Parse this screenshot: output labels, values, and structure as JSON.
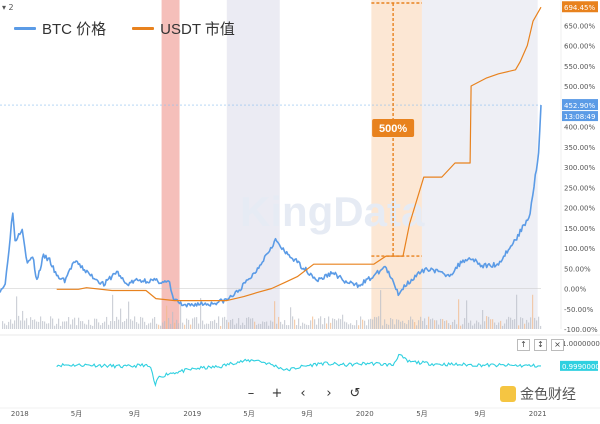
{
  "pane_toggle": "▾ 2",
  "legend": [
    {
      "label": "BTC 价格",
      "color": "#5b9be6"
    },
    {
      "label": "USDT 市值",
      "color": "#e8821e"
    }
  ],
  "watermark": "KingData",
  "annotation": {
    "text": "500%",
    "color": "#e8821e"
  },
  "axis_tag_colors": {
    "btc": "#5b9be6",
    "usdt": "#e8821e",
    "osc": "#2fd0e0"
  },
  "toolbar": {
    "minus": "–",
    "plus": "+",
    "left": "‹",
    "right": "›",
    "reset": "↺"
  },
  "mini_controls": {
    "up": "↑",
    "expand": "↕",
    "close": "×"
  },
  "brand": "金色财经",
  "chart_data": [
    {
      "type": "line",
      "x_range": [
        "2017-11-20",
        "2021-01-08"
      ],
      "x_tick_labels": [
        {
          "label": "2018",
          "date": "2018-01-01"
        },
        {
          "label": "5月",
          "date": "2018-05-01"
        },
        {
          "label": "9月",
          "date": "2018-09-01"
        },
        {
          "label": "2019",
          "date": "2019-01-01"
        },
        {
          "label": "5月",
          "date": "2019-05-01"
        },
        {
          "label": "9月",
          "date": "2019-09-01"
        },
        {
          "label": "2020",
          "date": "2020-01-01"
        },
        {
          "label": "5月",
          "date": "2020-05-01"
        },
        {
          "label": "9月",
          "date": "2020-09-01"
        },
        {
          "label": "2021",
          "date": "2021-01-01"
        }
      ],
      "y_tick_labels": [
        "650.00%",
        "600.00%",
        "550.00%",
        "500.00%",
        "450.00%",
        "400.00%",
        "350.00%",
        "300.00%",
        "250.00%",
        "200.00%",
        "150.00%",
        "100.00%",
        "50.00%",
        "0.00%",
        "-50.00%",
        "-100.00%"
      ],
      "y_unit": "%",
      "ylim": [
        -100,
        700
      ],
      "last_value_tags": {
        "usdt": "694.45%",
        "btc": "452.90%",
        "countdown": "13:08:49"
      },
      "series": [
        {
          "name": "BTC 价格",
          "color": "#5b9be6",
          "points": [
            [
              "2017-11-20",
              -4
            ],
            [
              "2017-12-01",
              10
            ],
            [
              "2017-12-17",
              190
            ],
            [
              "2017-12-22",
              118
            ],
            [
              "2018-01-06",
              150
            ],
            [
              "2018-01-17",
              60
            ],
            [
              "2018-01-28",
              80
            ],
            [
              "2018-02-06",
              20
            ],
            [
              "2018-02-20",
              80
            ],
            [
              "2018-03-05",
              70
            ],
            [
              "2018-03-20",
              30
            ],
            [
              "2018-04-06",
              20
            ],
            [
              "2018-04-25",
              65
            ],
            [
              "2018-05-05",
              60
            ],
            [
              "2018-05-28",
              35
            ],
            [
              "2018-06-28",
              10
            ],
            [
              "2018-07-25",
              42
            ],
            [
              "2018-08-14",
              10
            ],
            [
              "2018-09-05",
              20
            ],
            [
              "2018-10-15",
              19
            ],
            [
              "2018-11-14",
              14
            ],
            [
              "2018-11-20",
              -22
            ],
            [
              "2018-12-15",
              -45
            ],
            [
              "2019-01-10",
              -38
            ],
            [
              "2019-02-08",
              -38
            ],
            [
              "2019-03-15",
              -28
            ],
            [
              "2019-04-05",
              -10
            ],
            [
              "2019-05-14",
              40
            ],
            [
              "2019-06-26",
              120
            ],
            [
              "2019-07-15",
              90
            ],
            [
              "2019-08-06",
              70
            ],
            [
              "2019-09-24",
              20
            ],
            [
              "2019-10-26",
              40
            ],
            [
              "2019-11-22",
              15
            ],
            [
              "2019-12-17",
              8
            ],
            [
              "2020-01-20",
              30
            ],
            [
              "2020-02-13",
              55
            ],
            [
              "2020-03-12",
              -12
            ],
            [
              "2020-04-01",
              15
            ],
            [
              "2020-04-29",
              40
            ],
            [
              "2020-05-18",
              50
            ],
            [
              "2020-06-15",
              35
            ],
            [
              "2020-07-01",
              35
            ],
            [
              "2020-07-27",
              70
            ],
            [
              "2020-08-17",
              75
            ],
            [
              "2020-09-05",
              55
            ],
            [
              "2020-10-10",
              60
            ],
            [
              "2020-10-21",
              80
            ],
            [
              "2020-11-15",
              120
            ],
            [
              "2020-11-30",
              150
            ],
            [
              "2020-12-16",
              185
            ],
            [
              "2020-12-27",
              280
            ],
            [
              "2021-01-03",
              330
            ],
            [
              "2021-01-08",
              452.9
            ]
          ]
        },
        {
          "name": "USDT 市值",
          "color": "#e8821e",
          "points": [
            [
              "2018-03-20",
              -2
            ],
            [
              "2018-05-05",
              -2
            ],
            [
              "2018-05-22",
              2
            ],
            [
              "2018-07-15",
              -5
            ],
            [
              "2018-09-25",
              -5
            ],
            [
              "2018-10-16",
              -25
            ],
            [
              "2018-11-25",
              -30
            ],
            [
              "2019-02-01",
              -30
            ],
            [
              "2019-03-15",
              -30
            ],
            [
              "2019-04-20",
              -20
            ],
            [
              "2019-05-18",
              -10
            ],
            [
              "2019-06-18",
              0
            ],
            [
              "2019-07-16",
              15
            ],
            [
              "2019-08-12",
              30
            ],
            [
              "2019-09-15",
              60
            ],
            [
              "2019-10-15",
              60
            ],
            [
              "2019-11-15",
              60
            ],
            [
              "2019-12-15",
              60
            ],
            [
              "2020-01-20",
              60
            ],
            [
              "2020-02-15",
              80
            ],
            [
              "2020-03-22",
              80
            ],
            [
              "2020-04-05",
              160
            ],
            [
              "2020-05-05",
              275
            ],
            [
              "2020-06-12",
              275
            ],
            [
              "2020-07-10",
              310
            ],
            [
              "2020-08-07",
              310
            ],
            [
              "2020-08-11",
              310
            ],
            [
              "2020-08-13",
              500
            ],
            [
              "2020-09-15",
              520
            ],
            [
              "2020-10-10",
              530
            ],
            [
              "2020-11-15",
              540
            ],
            [
              "2020-11-25",
              560
            ],
            [
              "2020-12-10",
              600
            ],
            [
              "2020-12-22",
              660
            ],
            [
              "2021-01-08",
              694.45
            ]
          ]
        }
      ],
      "highlights": [
        {
          "from": "2018-10-28",
          "to": "2018-12-05",
          "color": "#f3b4ae"
        },
        {
          "from": "2019-03-15",
          "to": "2019-07-05",
          "color": "#e7e8f1"
        },
        {
          "from": "2020-01-15",
          "to": "2020-05-01",
          "color": "#fbe3cc"
        },
        {
          "from": "2020-05-01",
          "to": "2021-01-01",
          "color": "#ebecf3"
        }
      ]
    },
    {
      "type": "line",
      "title": "",
      "y_tick_labels": [
        "1.00000000 USD"
      ],
      "last_value_tags": {
        "osc": "0.99900000"
      },
      "series": [
        {
          "name": "",
          "color": "#2fd0e0",
          "points": [
            [
              "2018-03-20",
              1.0
            ],
            [
              "2018-06-01",
              1.0
            ],
            [
              "2018-08-15",
              0.998
            ],
            [
              "2018-09-20",
              1.0
            ],
            [
              "2018-10-05",
              0.997
            ],
            [
              "2018-10-15",
              0.975
            ],
            [
              "2018-10-20",
              0.985
            ],
            [
              "2018-11-10",
              0.99
            ],
            [
              "2018-12-01",
              0.992
            ],
            [
              "2019-01-10",
              0.996
            ],
            [
              "2019-03-01",
              0.998
            ],
            [
              "2019-04-01",
              1.003
            ],
            [
              "2019-05-15",
              1.006
            ],
            [
              "2019-06-20",
              1.0
            ],
            [
              "2019-07-20",
              0.994
            ],
            [
              "2019-08-20",
              0.998
            ],
            [
              "2019-10-01",
              1.002
            ],
            [
              "2019-11-20",
              1.0
            ],
            [
              "2020-01-10",
              1.002
            ],
            [
              "2020-03-01",
              1.0
            ],
            [
              "2020-03-13",
              1.012
            ],
            [
              "2020-04-01",
              1.004
            ],
            [
              "2020-06-01",
              1.001
            ],
            [
              "2020-09-01",
              1.0
            ],
            [
              "2021-01-08",
              0.999
            ]
          ]
        }
      ]
    }
  ]
}
